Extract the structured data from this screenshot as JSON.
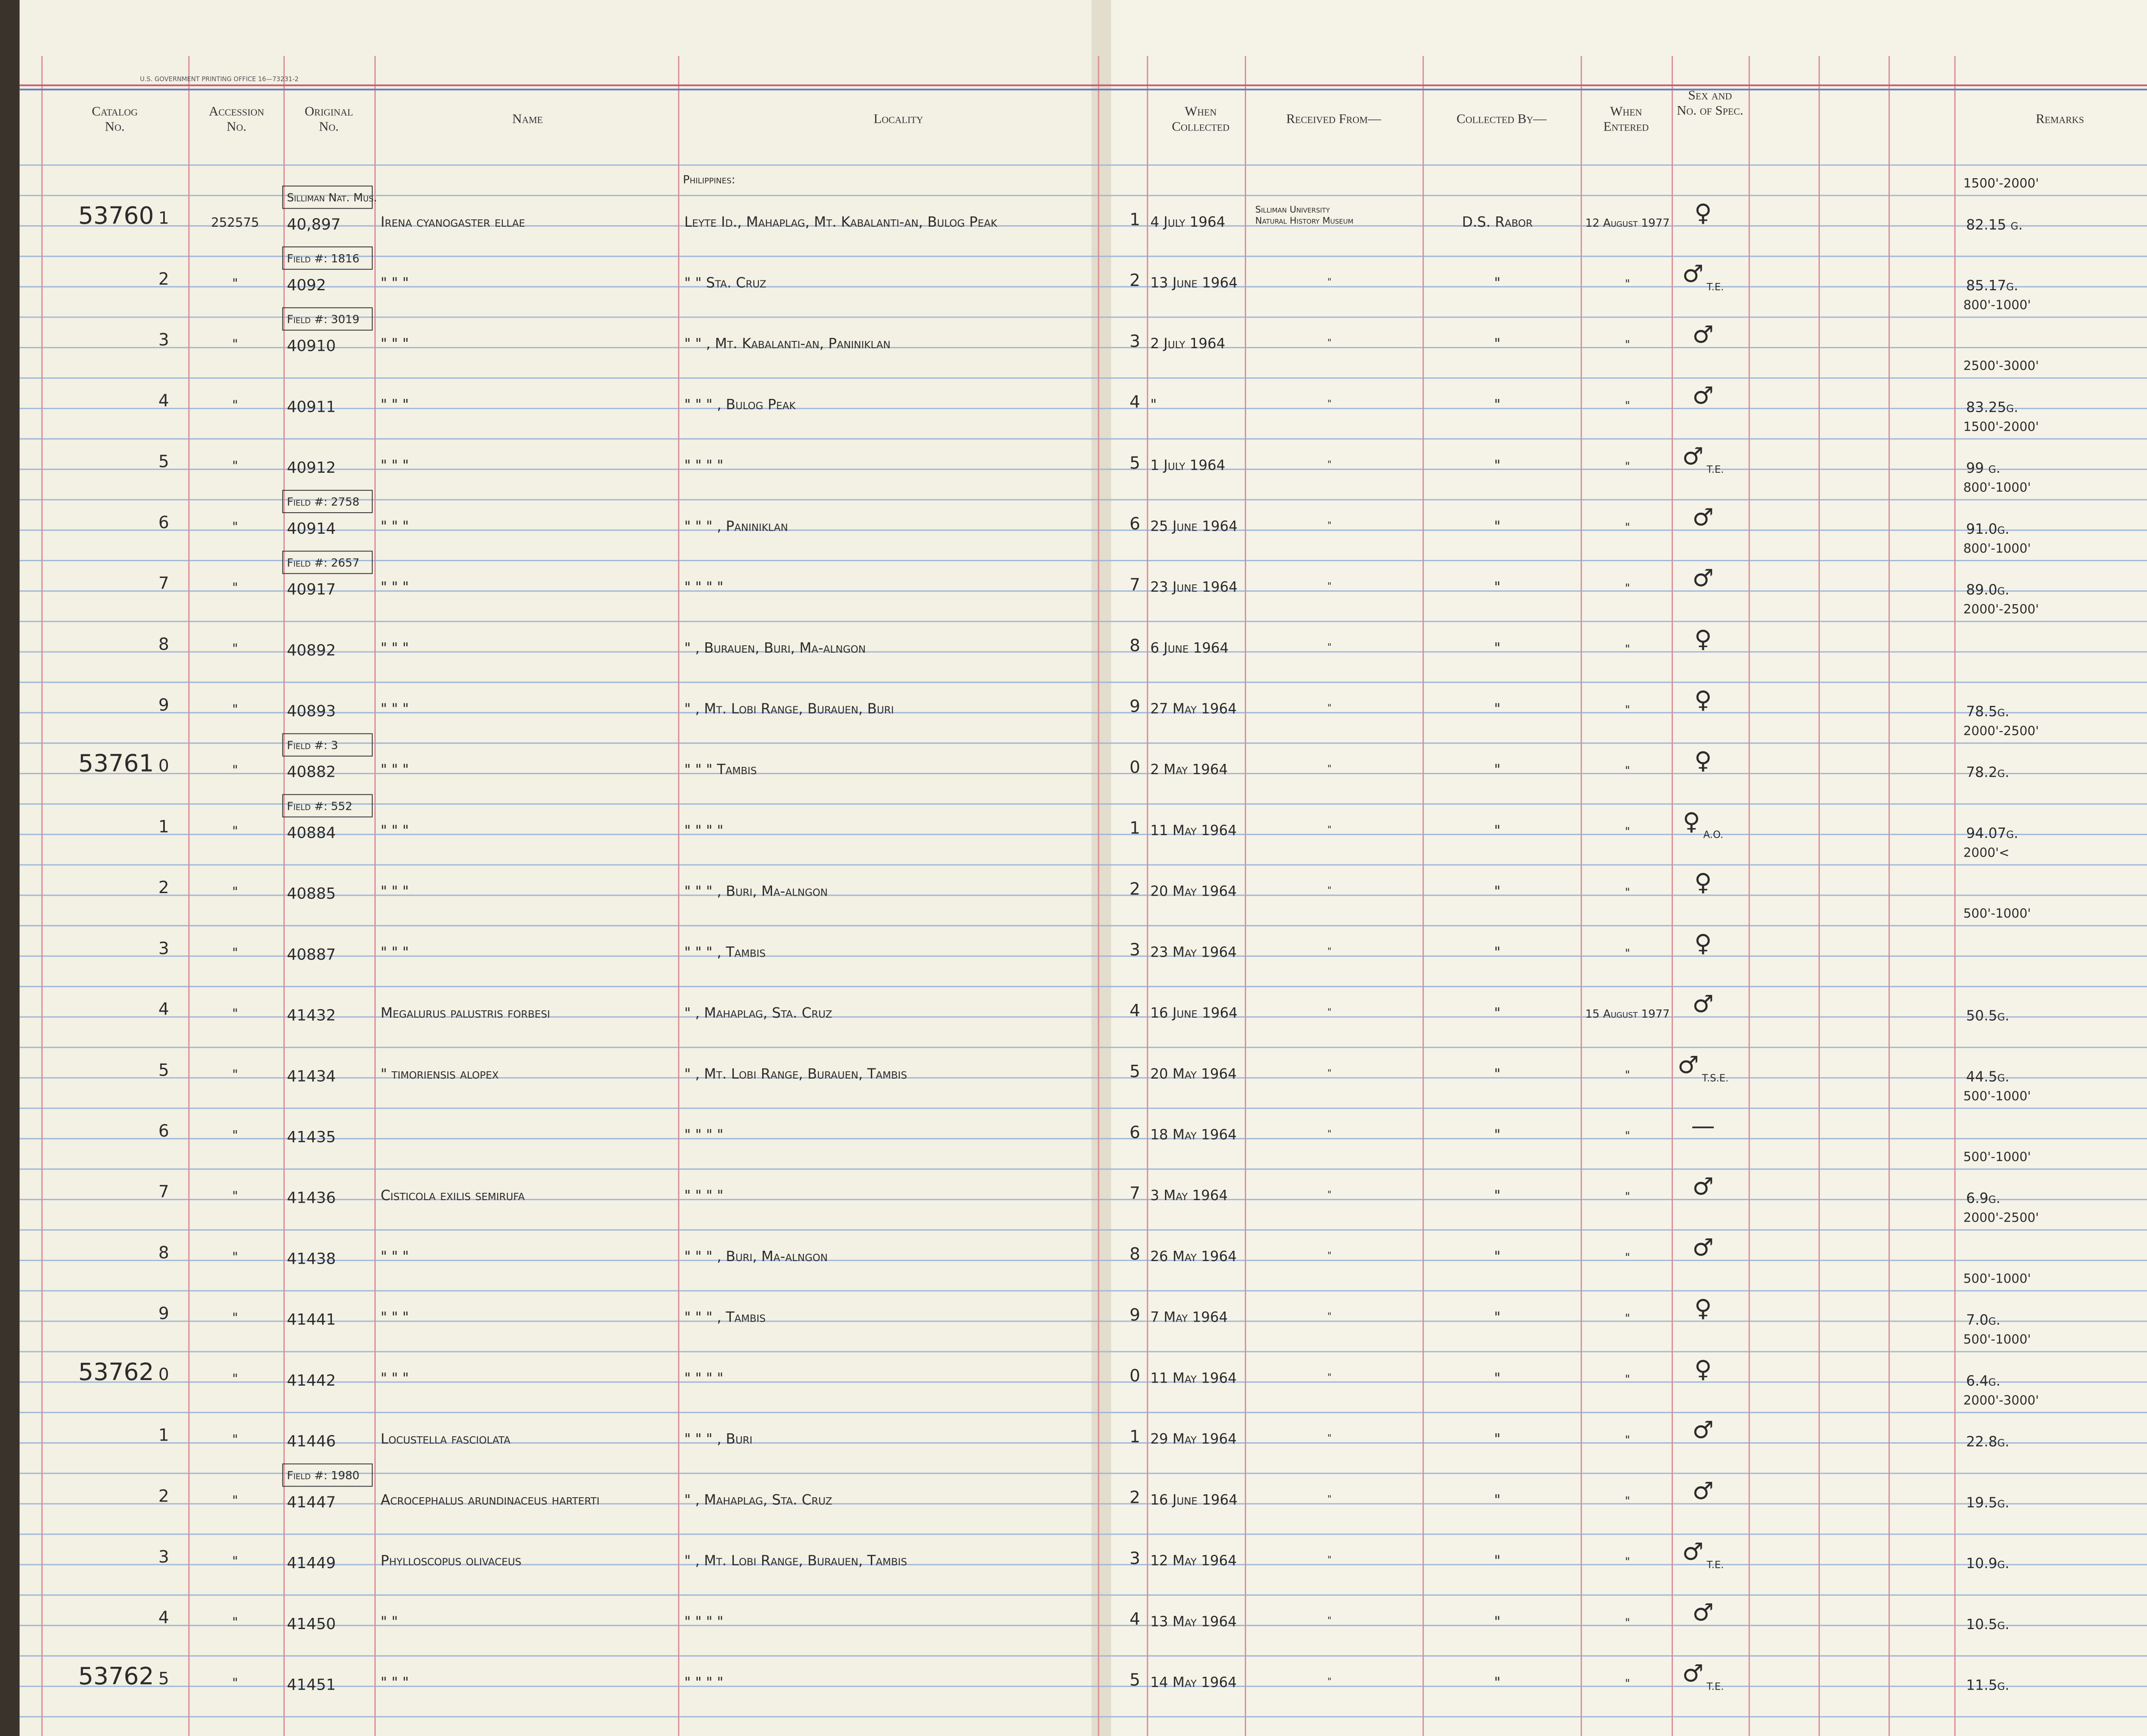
{
  "ledger": {
    "printer": "U.S. GOVERNMENT PRINTING OFFICE   16—73231-2",
    "headers": [
      "Catalog No.",
      "Accession No.",
      "Original No.",
      "Name",
      "Locality",
      "When Collected",
      "Received From—",
      "Collected By—",
      "When Entered",
      "Sex and No. of Spec.",
      "Remarks"
    ],
    "country": "Philippines:",
    "rows": [
      {
        "cat": "53760",
        "n": "1",
        "acc": "252575",
        "orig": "40,897",
        "note": "Silliman Nat. Mus.",
        "name": "Irena cyanogaster ellae",
        "loc": "Leyte Id., Mahaplag, Mt. Kabalanti-an, Bulog Peak",
        "date": "4 July 1964",
        "recv": "Silliman University Natural History Museum",
        "coll": "D.S. Rabor",
        "ent": "12 August 1977",
        "sex": "♀",
        "elev": "1500'-2000'",
        "wt": "82.15 g."
      },
      {
        "n": "2",
        "acc": "\"",
        "orig": "4092",
        "note": "Field #: 1816",
        "name": "\"      \"      \"",
        "loc": "\"      \"           Sta. Cruz",
        "date": "13 June 1964",
        "recv": "\"",
        "coll": "\"",
        "ent": "\"",
        "sex": "♂ T.E.",
        "wt": "85.17g."
      },
      {
        "n": "3",
        "acc": "\"",
        "orig": "40910",
        "note": "Field #: 3019",
        "name": "\"      \"      \"",
        "loc": "\"      \"  , Mt. Kabalanti-an, Paniniklan",
        "date": "2 July 1964",
        "recv": "\"",
        "coll": "\"",
        "ent": "\"",
        "sex": "♂",
        "elev": "800'-1000'"
      },
      {
        "n": "4",
        "acc": "\"",
        "orig": "40911",
        "name": "\"      \"      \"",
        "loc": "\"      \"      \"    , Bulog Peak",
        "date": "\"",
        "recv": "\"",
        "coll": "\"",
        "ent": "\"",
        "sex": "♂",
        "elev": "2500'-3000'",
        "wt": "83.25g."
      },
      {
        "n": "5",
        "acc": "\"",
        "orig": "40912",
        "name": "\"      \"      \"",
        "loc": "\"      \"      \"      \"",
        "date": "1 July 1964",
        "recv": "\"",
        "coll": "\"",
        "ent": "\"",
        "sex": "♂ T.E.",
        "elev": "1500'-2000'",
        "wt": "99 g."
      },
      {
        "n": "6",
        "acc": "\"",
        "orig": "40914",
        "note": "Field #: 2758",
        "name": "\"      \"      \"",
        "loc": "\"      \"      \"    , Paniniklan",
        "date": "25 June 1964",
        "recv": "\"",
        "coll": "\"",
        "ent": "\"",
        "sex": "♂",
        "elev": "800'-1000'",
        "wt": "91.0g."
      },
      {
        "n": "7",
        "acc": "\"",
        "orig": "40917",
        "note": "Field #: 2657",
        "name": "\"      \"      \"",
        "loc": "\"      \"      \"      \"",
        "date": "23 June 1964",
        "recv": "\"",
        "coll": "\"",
        "ent": "\"",
        "sex": "♂",
        "elev": "800'-1000'",
        "wt": "89.0g."
      },
      {
        "n": "8",
        "acc": "\"",
        "orig": "40892",
        "name": "\"      \"      \"",
        "loc": "\"   , Burauen, Buri, Ma-alngon",
        "date": "6 June 1964",
        "recv": "\"",
        "coll": "\"",
        "ent": "\"",
        "sex": "♀",
        "elev": "2000'-2500'"
      },
      {
        "n": "9",
        "acc": "\"",
        "orig": "40893",
        "name": "\"      \"      \"",
        "loc": "\"   , Mt. Lobi Range, Burauen, Buri",
        "date": "27 May 1964",
        "recv": "\"",
        "coll": "\"",
        "ent": "\"",
        "sex": "♀",
        "wt": "78.5g."
      },
      {
        "cat": "53761",
        "n": "0",
        "acc": "\"",
        "orig": "40882",
        "note": "Field #: 3",
        "name": "\"      \"      \"",
        "loc": "\"      \"      \"       Tambis",
        "date": "2 May 1964",
        "recv": "\"",
        "coll": "\"",
        "ent": "\"",
        "sex": "♀",
        "elev": "2000'-2500'",
        "wt": "78.2g."
      },
      {
        "n": "1",
        "acc": "\"",
        "orig": "40884",
        "note": "Field #: 552",
        "name": "\"      \"      \"",
        "loc": "\"      \"      \"      \"",
        "date": "11 May 1964",
        "recv": "\"",
        "coll": "\"",
        "ent": "\"",
        "sex": "♀ A.O.",
        "wt": "94.07g."
      },
      {
        "n": "2",
        "acc": "\"",
        "orig": "40885",
        "name": "\"      \"      \"",
        "loc": "\"      \"      \"    , Buri, Ma-alngon",
        "date": "20 May 1964",
        "recv": "\"",
        "coll": "\"",
        "ent": "\"",
        "sex": "♀",
        "elev": "2000'<"
      },
      {
        "n": "3",
        "acc": "\"",
        "orig": "40887",
        "name": "\"      \"      \"",
        "loc": "\"      \"      \"    , Tambis",
        "date": "23 May 1964",
        "recv": "\"",
        "coll": "\"",
        "ent": "\"",
        "sex": "♀",
        "elev": "500'-1000'"
      },
      {
        "n": "4",
        "acc": "\"",
        "orig": "41432",
        "name": "Megalurus palustris forbesi",
        "loc": "\"   , Mahaplag, Sta. Cruz",
        "date": "16 June 1964",
        "recv": "\"",
        "coll": "\"",
        "ent": "15 August 1977",
        "sex": "♂",
        "wt": "50.5g."
      },
      {
        "n": "5",
        "acc": "\"",
        "orig": "41434",
        "name": "\"      timoriensis alopex",
        "loc": "\"   , Mt. Lobi Range, Burauen, Tambis",
        "date": "20 May 1964",
        "recv": "\"",
        "coll": "\"",
        "ent": "\"",
        "sex": "♂ T.S.E.",
        "wt": "44.5g."
      },
      {
        "n": "6",
        "acc": "\"",
        "orig": "41435",
        "loc": "\"      \"      \"      \"",
        "date": "18 May 1964",
        "recv": "\"",
        "coll": "\"",
        "ent": "\"",
        "sex": "—",
        "elev": "500'-1000'"
      },
      {
        "n": "7",
        "acc": "\"",
        "orig": "41436",
        "name": "Cisticola exilis semirufa",
        "loc": "\"      \"      \"      \"",
        "date": "3 May 1964",
        "recv": "\"",
        "coll": "\"",
        "ent": "\"",
        "sex": "♂",
        "elev": "500'-1000'",
        "wt": "6.9g."
      },
      {
        "n": "8",
        "acc": "\"",
        "orig": "41438",
        "name": "\"      \"      \"",
        "loc": "\"      \"      \"  , Buri, Ma-alngon",
        "date": "26 May 1964",
        "recv": "\"",
        "coll": "\"",
        "ent": "\"",
        "sex": "♂",
        "elev": "2000'-2500'"
      },
      {
        "n": "9",
        "acc": "\"",
        "orig": "41441",
        "name": "\"      \"      \"",
        "loc": "\"      \"      \"    , Tambis",
        "date": "7 May 1964",
        "recv": "\"",
        "coll": "\"",
        "ent": "\"",
        "sex": "♀",
        "elev": "500'-1000'",
        "wt": "7.0g."
      },
      {
        "cat": "53762",
        "n": "0",
        "acc": "\"",
        "orig": "41442",
        "name": "\"      \"      \"",
        "loc": "\"      \"      \"      \"",
        "date": "11 May 1964",
        "recv": "\"",
        "coll": "\"",
        "ent": "\"",
        "sex": "♀",
        "elev": "500'-1000'",
        "wt": "6.4g."
      },
      {
        "n": "1",
        "acc": "\"",
        "orig": "41446",
        "name": "Locustella fasciolata",
        "loc": "\"      \"      \"    , Buri",
        "date": "29 May 1964",
        "recv": "\"",
        "coll": "\"",
        "ent": "\"",
        "sex": "♂",
        "elev": "2000'-3000'",
        "wt": "22.8g."
      },
      {
        "n": "2",
        "acc": "\"",
        "orig": "41447",
        "note": "Field #: 1980",
        "name": "Acrocephalus arundinaceus harterti",
        "loc": "\"   , Mahaplag, Sta. Cruz",
        "date": "16 June 1964",
        "recv": "\"",
        "coll": "\"",
        "ent": "\"",
        "sex": "♂",
        "wt": "19.5g."
      },
      {
        "n": "3",
        "acc": "\"",
        "orig": "41449",
        "name": "Phylloscopus olivaceus",
        "loc": "\"   , Mt. Lobi Range, Burauen, Tambis",
        "date": "12 May 1964",
        "recv": "\"",
        "coll": "\"",
        "ent": "\"",
        "sex": "♂ T.E.",
        "wt": "10.9g."
      },
      {
        "n": "4",
        "acc": "\"",
        "orig": "41450",
        "name": "\"      \"",
        "loc": "\"      \"      \"      \"",
        "date": "13 May 1964",
        "recv": "\"",
        "coll": "\"",
        "ent": "\"",
        "sex": "♂",
        "wt": "10.5g."
      },
      {
        "cat": "53762",
        "n": "5",
        "acc": "\"",
        "orig": "41451",
        "name": "\"      \"      \"",
        "loc": "\"      \"      \"      \"",
        "date": "14 May 1964",
        "recv": "\"",
        "coll": "\"",
        "ent": "\"",
        "sex": "♂ T.E.",
        "wt": "11.5g."
      }
    ]
  }
}
